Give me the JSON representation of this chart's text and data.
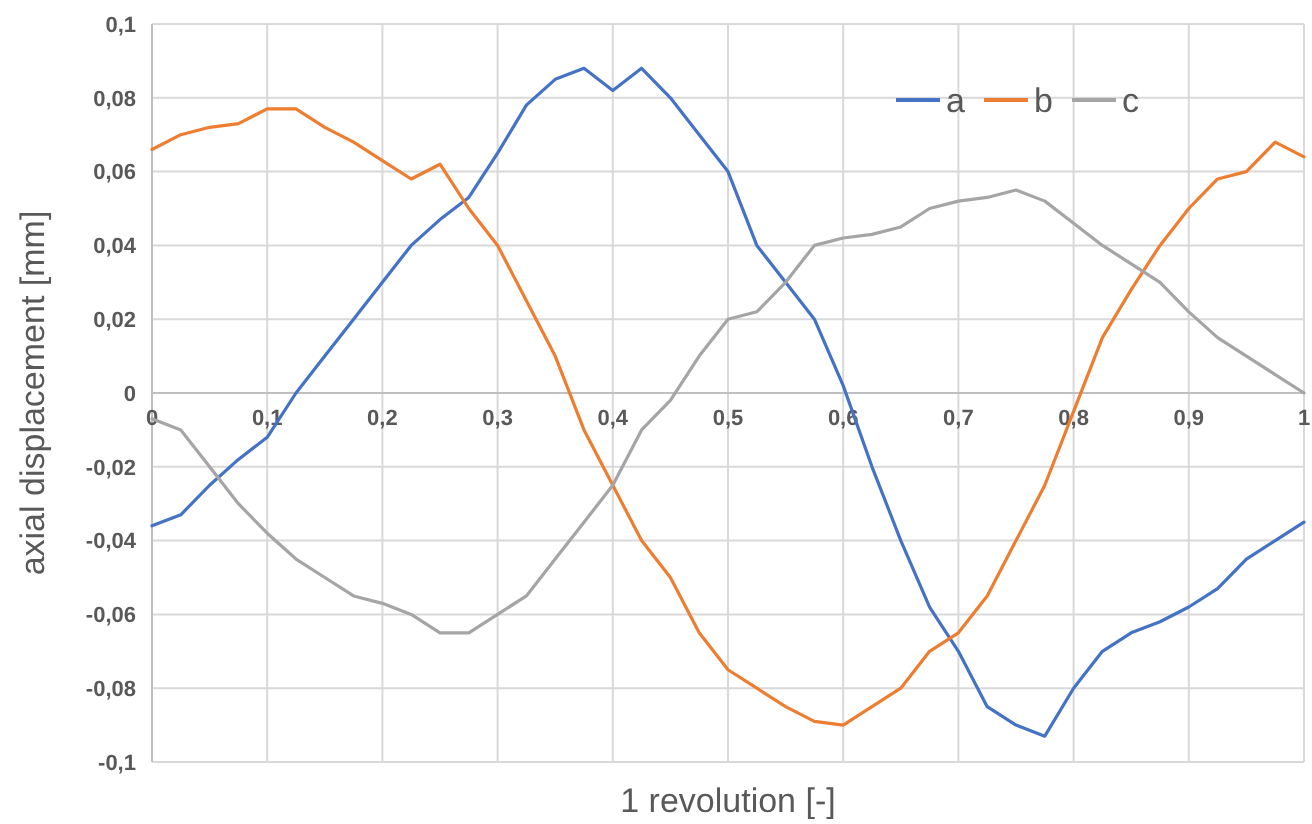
{
  "chart_data": {
    "type": "line",
    "xlabel": "1 revolution [-]",
    "ylabel": "axial displacement [mm]",
    "x": [
      0,
      0.025,
      0.05,
      0.075,
      0.1,
      0.125,
      0.15,
      0.175,
      0.2,
      0.225,
      0.25,
      0.275,
      0.3,
      0.325,
      0.35,
      0.375,
      0.4,
      0.425,
      0.45,
      0.475,
      0.5,
      0.525,
      0.55,
      0.575,
      0.6,
      0.625,
      0.65,
      0.675,
      0.7,
      0.725,
      0.75,
      0.775,
      0.8,
      0.825,
      0.85,
      0.875,
      0.9,
      0.925,
      0.95,
      0.975,
      1
    ],
    "series": [
      {
        "name": "a",
        "color": "#4472c4",
        "values": [
          -0.036,
          -0.033,
          -0.025,
          -0.018,
          -0.012,
          0.0,
          0.01,
          0.02,
          0.03,
          0.04,
          0.047,
          0.053,
          0.065,
          0.078,
          0.085,
          0.088,
          0.082,
          0.088,
          0.08,
          0.07,
          0.06,
          0.04,
          0.03,
          0.02,
          0.002,
          -0.02,
          -0.04,
          -0.058,
          -0.07,
          -0.085,
          -0.09,
          -0.093,
          -0.08,
          -0.07,
          -0.065,
          -0.062,
          -0.058,
          -0.053,
          -0.045,
          -0.04,
          -0.035
        ]
      },
      {
        "name": "b",
        "color": "#ed7d31",
        "values": [
          0.066,
          0.07,
          0.072,
          0.073,
          0.077,
          0.077,
          0.072,
          0.068,
          0.063,
          0.058,
          0.062,
          0.05,
          0.04,
          0.025,
          0.01,
          -0.01,
          -0.025,
          -0.04,
          -0.05,
          -0.065,
          -0.075,
          -0.08,
          -0.085,
          -0.089,
          -0.09,
          -0.085,
          -0.08,
          -0.07,
          -0.065,
          -0.055,
          -0.04,
          -0.025,
          -0.005,
          0.015,
          0.028,
          0.04,
          0.05,
          0.058,
          0.06,
          0.068,
          0.064
        ]
      },
      {
        "name": "c",
        "color": "#a5a5a5",
        "values": [
          -0.007,
          -0.01,
          -0.02,
          -0.03,
          -0.038,
          -0.045,
          -0.05,
          -0.055,
          -0.057,
          -0.06,
          -0.065,
          -0.065,
          -0.06,
          -0.055,
          -0.045,
          -0.035,
          -0.025,
          -0.01,
          -0.002,
          0.01,
          0.02,
          0.022,
          0.03,
          0.04,
          0.042,
          0.043,
          0.045,
          0.05,
          0.052,
          0.053,
          0.055,
          0.052,
          0.046,
          0.04,
          0.035,
          0.03,
          0.022,
          0.015,
          0.01,
          0.005,
          0.0
        ]
      }
    ],
    "xlim": [
      0,
      1
    ],
    "xticks": [
      0,
      {
        "value": 0.1,
        "label": "0,1"
      },
      {
        "value": 0.2,
        "label": "0,2"
      },
      {
        "value": 0.3,
        "label": "0,3"
      },
      {
        "value": 0.4,
        "label": "0,4"
      },
      {
        "value": 0.5,
        "label": "0,5"
      },
      {
        "value": 0.6,
        "label": "0,6"
      },
      {
        "value": 0.7,
        "label": "0,7"
      },
      {
        "value": 0.8,
        "label": "0,8"
      },
      {
        "value": 0.9,
        "label": "0,9"
      },
      1
    ],
    "ylim": [
      -0.1,
      0.1
    ],
    "yticks": [
      {
        "value": -0.1,
        "label": "-0,1"
      },
      {
        "value": -0.08,
        "label": "-0,08"
      },
      {
        "value": -0.06,
        "label": "-0,06"
      },
      {
        "value": -0.04,
        "label": "-0,04"
      },
      {
        "value": -0.02,
        "label": "-0,02"
      },
      0,
      {
        "value": 0.02,
        "label": "0,02"
      },
      {
        "value": 0.04,
        "label": "0,04"
      },
      {
        "value": 0.06,
        "label": "0,06"
      },
      {
        "value": 0.08,
        "label": "0,08"
      },
      {
        "value": 0.1,
        "label": "0,1"
      }
    ],
    "grid": true,
    "legend": "top right",
    "marker": "none",
    "line_style": "solid"
  }
}
